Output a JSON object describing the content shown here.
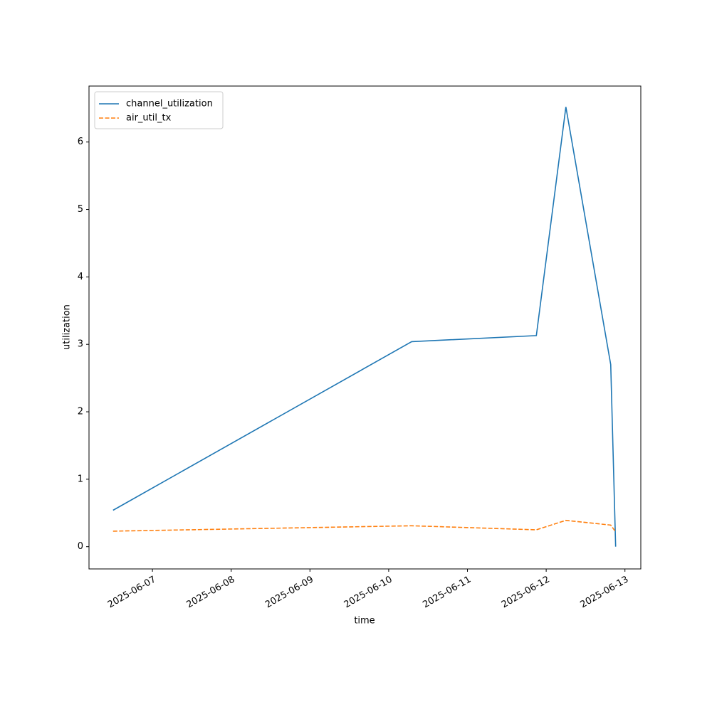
{
  "chart_data": {
    "type": "line",
    "x_label": "time",
    "y_label": "utilization",
    "x": [
      "2025-06-06T12:00",
      "2025-06-10T07:00",
      "2025-06-11T21:00",
      "2025-06-12T06:00",
      "2025-06-12T19:40",
      "2025-06-12T21:10"
    ],
    "series": [
      {
        "name": "channel_utilization",
        "color": "#1f77b4",
        "dash": false,
        "values": [
          0.54,
          3.04,
          3.13,
          6.52,
          2.7,
          0
        ]
      },
      {
        "name": "air_util_tx",
        "color": "#ff7f0e",
        "dash": true,
        "values": [
          0.23,
          0.31,
          0.25,
          0.39,
          0.32,
          0.22
        ]
      }
    ],
    "xlim": [
      "2025-06-06T04:40",
      "2025-06-13T04:50"
    ],
    "xticks": [
      "2025-06-07",
      "2025-06-08",
      "2025-06-09",
      "2025-06-10",
      "2025-06-11",
      "2025-06-12",
      "2025-06-13"
    ],
    "ylim": [
      -0.33,
      6.83
    ],
    "yticks": [
      0,
      1,
      2,
      3,
      4,
      5,
      6
    ],
    "legend": "upper left",
    "grid": false
  }
}
